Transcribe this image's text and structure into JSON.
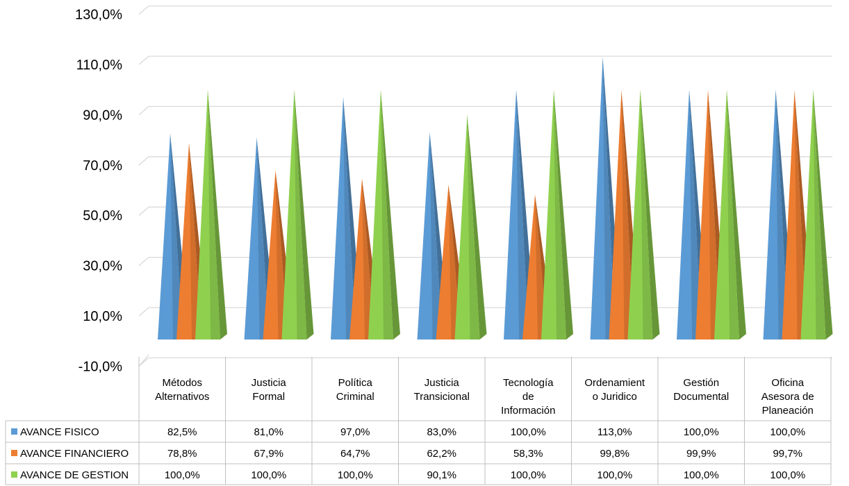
{
  "chart_data": {
    "type": "bar",
    "bar_shape": "cone-3d",
    "categories": [
      "Métodos\nAlternativos",
      "Justicia\nFormal",
      "Política\nCriminal",
      "Justicia\nTransicional",
      "Tecnología\nde\nInformación",
      "Ordenamient\no Juridico",
      "Gestión\nDocumental",
      "Oficina\nAsesora de\nPlaneación"
    ],
    "series": [
      {
        "name": "AVANCE FISICO",
        "color": "#5b9bd5",
        "values": [
          82.5,
          81.0,
          97.0,
          83.0,
          100.0,
          113.0,
          100.0,
          100.0
        ],
        "labels": [
          "82,5%",
          "81,0%",
          "97,0%",
          "83,0%",
          "100,0%",
          "113,0%",
          "100,0%",
          "100,0%"
        ]
      },
      {
        "name": "AVANCE FINANCIERO",
        "color": "#ed7d31",
        "values": [
          78.8,
          67.9,
          64.7,
          62.2,
          58.3,
          99.8,
          99.9,
          99.7
        ],
        "labels": [
          "78,8%",
          "67,9%",
          "64,7%",
          "62,2%",
          "58,3%",
          "99,8%",
          "99,9%",
          "99,7%"
        ]
      },
      {
        "name": "AVANCE DE GESTION",
        "color": "#8fd14f",
        "values": [
          100.0,
          100.0,
          100.0,
          90.1,
          100.0,
          100.0,
          100.0,
          100.0
        ],
        "labels": [
          "100,0%",
          "100,0%",
          "100,0%",
          "90,1%",
          "100,0%",
          "100,0%",
          "100,0%",
          "100,0%"
        ]
      }
    ],
    "yticks": [
      -10,
      10,
      30,
      50,
      70,
      90,
      110,
      130
    ],
    "ytick_labels": [
      "-10,0%",
      "10,0%",
      "30,0%",
      "50,0%",
      "70,0%",
      "90,0%",
      "110,0%",
      "130,0%"
    ],
    "ylim": [
      -10,
      130
    ],
    "grid": true,
    "legend": "data-table-below"
  }
}
